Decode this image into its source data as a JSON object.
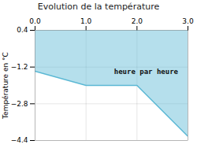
{
  "chart_data": {
    "type": "area",
    "title": "Evolution de la température",
    "ylabel": "Température en °C",
    "annotations": [
      {
        "text": "heure par heure",
        "x": 1.55,
        "y": -1.3
      }
    ],
    "x": [
      0,
      1,
      2,
      3
    ],
    "values": [
      -1.38,
      -2.0,
      -2.0,
      -4.22
    ],
    "color": "#5bb8d4",
    "xlim": [
      0,
      3
    ],
    "ylim": [
      -4.4,
      0.4
    ],
    "xticks": [
      0,
      1,
      2,
      3
    ],
    "yticks": [
      0.4,
      -1.2,
      -2.8,
      -4.4
    ],
    "grid": true
  }
}
